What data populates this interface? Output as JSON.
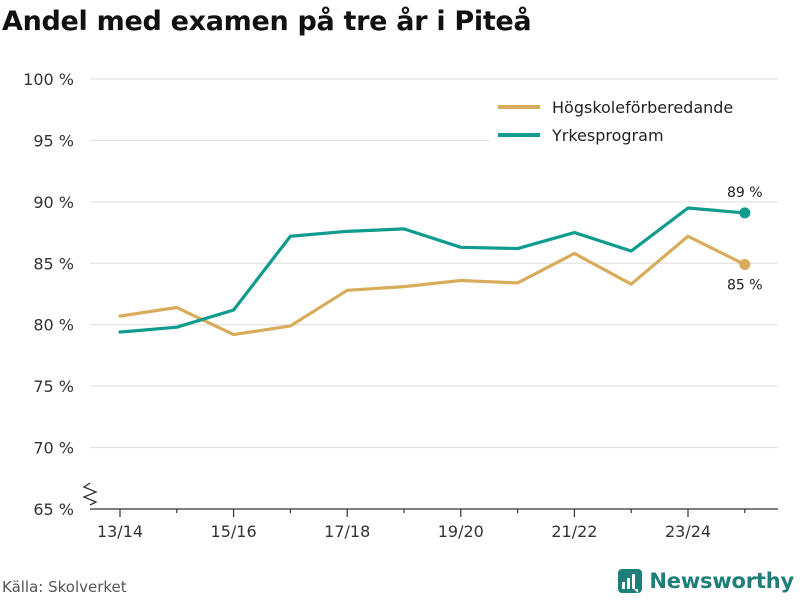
{
  "title": "Andel med examen på tre år i Piteå",
  "source": "Källa: Skolverket",
  "brand": "Newsworthy",
  "chart_data": {
    "type": "line",
    "title": "Andel med examen på tre år i Piteå",
    "x": [
      "13/14",
      "14/15",
      "15/16",
      "16/17",
      "17/18",
      "18/19",
      "19/20",
      "20/21",
      "21/22",
      "22/23",
      "23/24",
      "24/25"
    ],
    "x_tick_labels": [
      "13/14",
      "15/16",
      "17/18",
      "19/20",
      "21/22",
      "23/24"
    ],
    "y_ticks": [
      65,
      70,
      75,
      80,
      85,
      90,
      95,
      100
    ],
    "y_tick_labels": [
      "65 %",
      "70 %",
      "75 %",
      "80 %",
      "85 %",
      "90 %",
      "95 %",
      "100 %"
    ],
    "ylim": [
      65,
      100
    ],
    "xlabel": "",
    "ylabel": "",
    "grid": true,
    "legend_position": "top-right",
    "series": [
      {
        "name": "Högskoleförberedande",
        "color": "#d9ac5b",
        "values": [
          80.7,
          81.4,
          79.2,
          79.9,
          82.8,
          83.1,
          83.6,
          83.4,
          85.8,
          83.3,
          87.2,
          84.9
        ],
        "end_label": "85 %"
      },
      {
        "name": "Yrkesprogram",
        "color": "#0f9b8e",
        "values": [
          79.4,
          79.8,
          81.2,
          87.2,
          87.6,
          87.8,
          86.3,
          86.2,
          87.5,
          86.0,
          89.5,
          89.1
        ],
        "end_label": "89 %"
      }
    ]
  }
}
